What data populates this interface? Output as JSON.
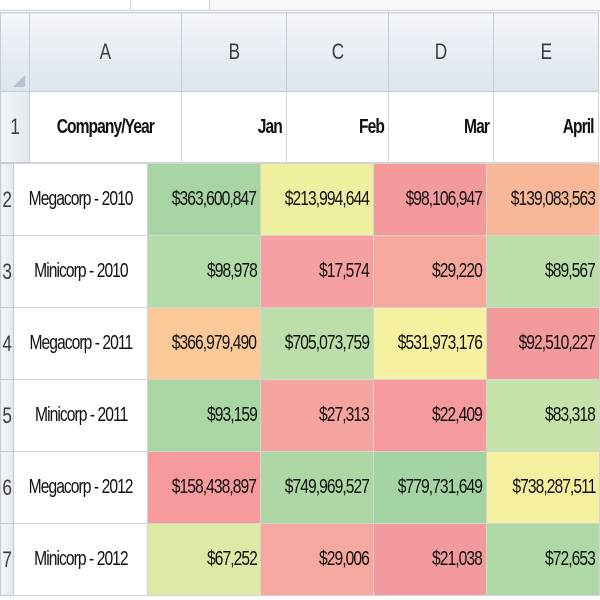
{
  "columns": [
    "A",
    "B",
    "C",
    "D",
    "E"
  ],
  "row_numbers": [
    "1",
    "2",
    "3",
    "4",
    "5",
    "6",
    "7"
  ],
  "header_row": [
    "Company/Year",
    "Jan",
    "Feb",
    "Mar",
    "April"
  ],
  "rows": [
    {
      "label": "Megacorp - 2010",
      "values": [
        "$363,600,847",
        "$213,994,644",
        "$98,106,947",
        "$139,083,563"
      ],
      "colors": [
        "#a7d6a4",
        "#eef0a0",
        "#f59a9c",
        "#f8b796"
      ]
    },
    {
      "label": "Minicorp - 2010",
      "values": [
        "$98,978",
        "$17,574",
        "$29,220",
        "$89,567"
      ],
      "colors": [
        "#b2dba8",
        "#f7a0a1",
        "#f6a89c",
        "#bcdfa9"
      ]
    },
    {
      "label": "Megacorp - 2011",
      "values": [
        "$366,979,490",
        "$705,073,759",
        "$531,973,176",
        "$92,510,227"
      ],
      "colors": [
        "#fbc998",
        "#bcdfa9",
        "#f5f1a1",
        "#f39a9d"
      ]
    },
    {
      "label": "Minicorp - 2011",
      "values": [
        "$93,159",
        "$27,313",
        "$22,409",
        "$83,318"
      ],
      "colors": [
        "#a9d7a4",
        "#f6a49f",
        "#f59b9e",
        "#c5e3a9"
      ]
    },
    {
      "label": "Megacorp - 2012",
      "values": [
        "$158,438,897",
        "$749,969,527",
        "$779,731,649",
        "$738,287,511"
      ],
      "colors": [
        "#f69a9d",
        "#add8a5",
        "#a4d4a3",
        "#f5f0a0"
      ]
    },
    {
      "label": "Minicorp - 2012",
      "values": [
        "$67,252",
        "$29,006",
        "$21,038",
        "$72,653"
      ],
      "colors": [
        "#dbeba5",
        "#f6a79f",
        "#f39a9e",
        "#aed9a6"
      ]
    }
  ]
}
